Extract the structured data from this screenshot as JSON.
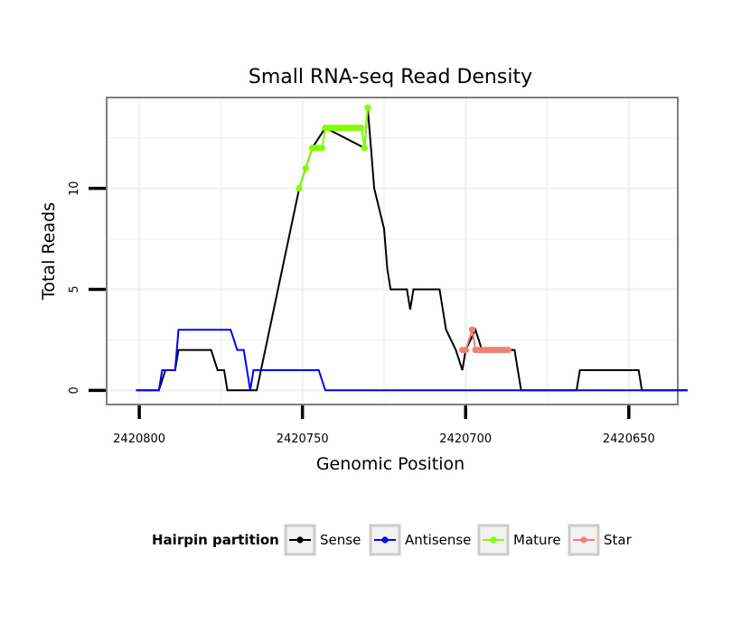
{
  "chart_data": {
    "type": "line",
    "title": "Small RNA-seq Read Density",
    "xlabel": "Genomic Position",
    "ylabel": "Total Reads",
    "xlim": [
      2420810,
      2420635
    ],
    "ylim": [
      -0.7,
      14.5
    ],
    "x_reversed": true,
    "x_ticks": [
      2420800,
      2420750,
      2420700,
      2420650
    ],
    "x_tick_labels": [
      "2420800",
      "2420750",
      "2420700",
      "2420650"
    ],
    "y_ticks": [
      0,
      5,
      10
    ],
    "y_tick_labels": [
      "0",
      "5",
      "10"
    ],
    "grid": true,
    "legend": {
      "title": "Hairpin partition",
      "position": "bottom",
      "entries": [
        "Sense",
        "Antisense",
        "Mature",
        "Star"
      ]
    },
    "series": [
      {
        "name": "Sense",
        "color": "#000000",
        "points": [
          [
            2420801,
            0
          ],
          [
            2420794,
            0
          ],
          [
            2420792,
            1
          ],
          [
            2420789,
            1
          ],
          [
            2420788,
            2
          ],
          [
            2420778,
            2
          ],
          [
            2420776,
            1
          ],
          [
            2420774,
            1
          ],
          [
            2420773,
            0
          ],
          [
            2420764,
            0
          ],
          [
            2420751,
            10
          ],
          [
            2420749,
            11
          ],
          [
            2420747,
            12
          ],
          [
            2420743,
            13
          ],
          [
            2420731,
            12
          ],
          [
            2420730,
            14
          ],
          [
            2420728,
            10
          ],
          [
            2420725,
            8
          ],
          [
            2420724,
            6
          ],
          [
            2420723,
            5
          ],
          [
            2420718,
            5
          ],
          [
            2420717,
            4
          ],
          [
            2420716,
            5
          ],
          [
            2420708,
            5
          ],
          [
            2420707,
            4
          ],
          [
            2420706,
            3
          ],
          [
            2420703,
            2
          ],
          [
            2420701,
            1
          ],
          [
            2420700,
            2
          ],
          [
            2420697,
            3
          ],
          [
            2420695,
            2
          ],
          [
            2420685,
            2
          ],
          [
            2420684,
            1
          ],
          [
            2420683,
            0
          ],
          [
            2420666,
            0
          ],
          [
            2420665,
            1
          ],
          [
            2420647,
            1
          ],
          [
            2420646,
            0
          ],
          [
            2420632,
            0
          ]
        ]
      },
      {
        "name": "Antisense",
        "color": "#0000ff",
        "points": [
          [
            2420801,
            0
          ],
          [
            2420794,
            0
          ],
          [
            2420793,
            1
          ],
          [
            2420789,
            1
          ],
          [
            2420788,
            3
          ],
          [
            2420772,
            3
          ],
          [
            2420770,
            2
          ],
          [
            2420768,
            2
          ],
          [
            2420767,
            1
          ],
          [
            2420766,
            0
          ],
          [
            2420765,
            1
          ],
          [
            2420745,
            1
          ],
          [
            2420743,
            0
          ],
          [
            2420632,
            0
          ]
        ]
      },
      {
        "name": "Mature",
        "color": "#7fff00",
        "points": [
          [
            2420751,
            10
          ],
          [
            2420749,
            11
          ],
          [
            2420747,
            12
          ],
          [
            2420746,
            12
          ],
          [
            2420745,
            12
          ],
          [
            2420744,
            12
          ],
          [
            2420743,
            13
          ],
          [
            2420742,
            13
          ],
          [
            2420741,
            13
          ],
          [
            2420740,
            13
          ],
          [
            2420739,
            13
          ],
          [
            2420738,
            13
          ],
          [
            2420737,
            13
          ],
          [
            2420736,
            13
          ],
          [
            2420735,
            13
          ],
          [
            2420734,
            13
          ],
          [
            2420733,
            13
          ],
          [
            2420732,
            13
          ],
          [
            2420731,
            12
          ],
          [
            2420730,
            14
          ]
        ]
      },
      {
        "name": "Star",
        "color": "#f08072",
        "points": [
          [
            2420701,
            2
          ],
          [
            2420700,
            2
          ],
          [
            2420698,
            3
          ],
          [
            2420697,
            2
          ],
          [
            2420696,
            2
          ],
          [
            2420695,
            2
          ],
          [
            2420694,
            2
          ],
          [
            2420693,
            2
          ],
          [
            2420692,
            2
          ],
          [
            2420691,
            2
          ],
          [
            2420690,
            2
          ],
          [
            2420689,
            2
          ],
          [
            2420688,
            2
          ],
          [
            2420687,
            2
          ]
        ]
      }
    ]
  }
}
